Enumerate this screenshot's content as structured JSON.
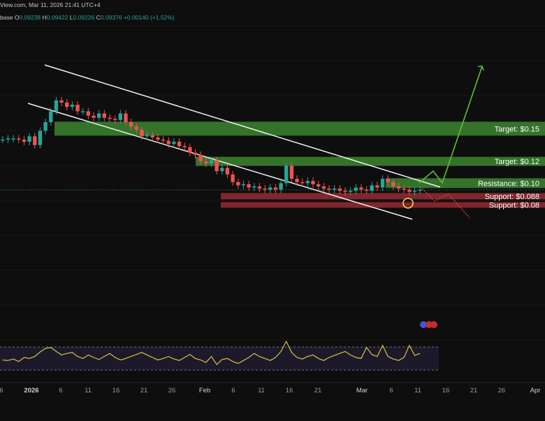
{
  "header": {
    "title_line": "View.com, Mar 11, 2026 21:41 UTC+4",
    "symbol_fragment": "base",
    "ohlc": [
      {
        "label": "O",
        "value": "0.09238"
      },
      {
        "label": "H",
        "value": "0.09422"
      },
      {
        "label": "L",
        "value": "0.09226"
      },
      {
        "label": "C",
        "value": "0.09376"
      }
    ],
    "change": "+0.00140 (+1.52%)"
  },
  "colors": {
    "background": "#0e0e0e",
    "up": "#26a69a",
    "down": "#ef5350",
    "target_zone": "#3a7d2e",
    "support_zone": "#8c2a2f",
    "oscillator": "#d9c23f",
    "projection_up": "#5fbf3c",
    "projection_down": "#e04050"
  },
  "chart_data": {
    "type": "candlestick",
    "series": [
      {
        "name": "",
        "values": [
          0.14,
          0.141,
          0.141,
          0.14,
          0.138,
          0.143,
          0.135,
          0.148,
          0.156,
          0.166,
          0.176,
          0.174,
          0.17,
          0.172,
          0.166,
          0.166,
          0.162,
          0.16,
          0.164,
          0.16,
          0.159,
          0.158,
          0.164,
          0.156,
          0.152,
          0.149,
          0.143,
          0.144,
          0.142,
          0.14,
          0.139,
          0.136,
          0.138,
          0.134,
          0.133,
          0.128,
          0.126,
          0.12,
          0.118,
          0.121,
          0.111,
          0.114,
          0.108,
          0.101,
          0.098,
          0.099,
          0.096,
          0.097,
          0.095,
          0.094,
          0.096,
          0.094,
          0.1,
          0.116,
          0.104,
          0.101,
          0.1,
          0.102,
          0.099,
          0.097,
          0.095,
          0.094,
          0.095,
          0.093,
          0.092,
          0.093,
          0.096,
          0.094,
          0.093,
          0.098,
          0.096,
          0.104,
          0.101,
          0.097,
          0.095,
          0.094,
          0.092,
          0.093,
          0.094
        ]
      }
    ],
    "x_ticks": [
      "6",
      "2026",
      "6",
      "11",
      "16",
      "21",
      "26",
      "Feb",
      "6",
      "11",
      "16",
      "21",
      "Mar",
      "6",
      "11",
      "16",
      "21",
      "26",
      "Apr"
    ],
    "zones": [
      {
        "label": "Target: $0.15",
        "value": 0.15,
        "kind": "target"
      },
      {
        "label": "Target: $0.12",
        "value": 0.12,
        "kind": "target"
      },
      {
        "label": "Resistance: $0.10",
        "value": 0.1,
        "kind": "resistance"
      },
      {
        "label": "Support: $0.088",
        "value": 0.088,
        "kind": "support"
      },
      {
        "label": "Support: $0.08",
        "value": 0.08,
        "kind": "support"
      }
    ],
    "oscillator": {
      "values": [
        45,
        44,
        47,
        42,
        50,
        48,
        52,
        61,
        68,
        70,
        62,
        55,
        58,
        60,
        52,
        48,
        55,
        50,
        46,
        52,
        58,
        50,
        45,
        48,
        52,
        56,
        60,
        55,
        50,
        45,
        48,
        52,
        47,
        44,
        50,
        56,
        48,
        45,
        40,
        52,
        36,
        46,
        48,
        42,
        38,
        44,
        50,
        58,
        52,
        48,
        44,
        50,
        62,
        82,
        60,
        50,
        47,
        52,
        55,
        48,
        44,
        50,
        54,
        58,
        62,
        55,
        50,
        48,
        70,
        56,
        52,
        74,
        52,
        47,
        44,
        50,
        74,
        54,
        58
      ]
    }
  }
}
